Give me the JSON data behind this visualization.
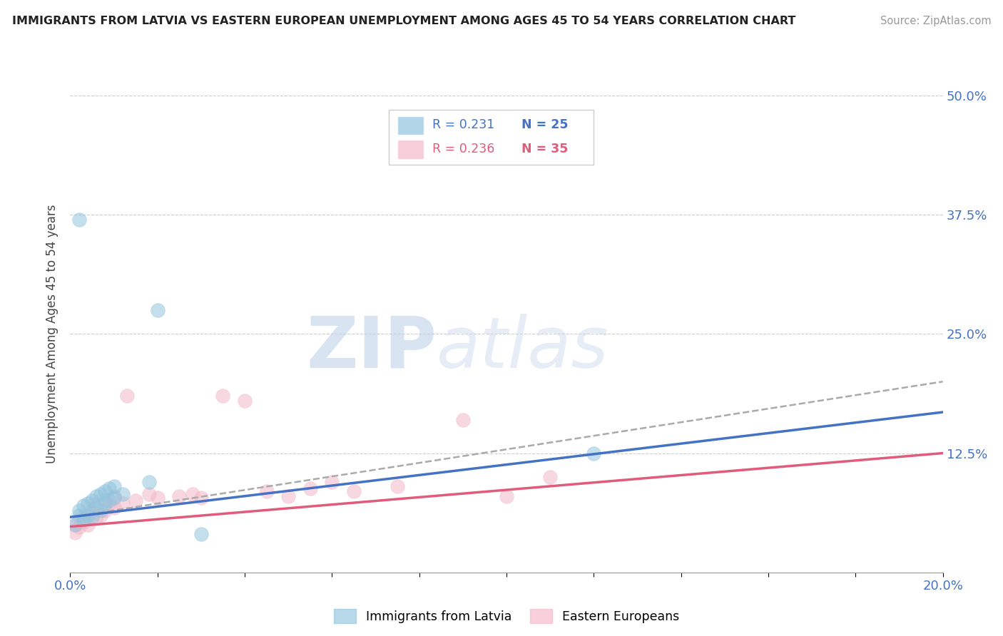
{
  "title": "IMMIGRANTS FROM LATVIA VS EASTERN EUROPEAN UNEMPLOYMENT AMONG AGES 45 TO 54 YEARS CORRELATION CHART",
  "source": "Source: ZipAtlas.com",
  "ylabel": "Unemployment Among Ages 45 to 54 years",
  "xlim": [
    0,
    0.2
  ],
  "ylim": [
    0,
    0.5
  ],
  "yticks": [
    0,
    0.125,
    0.25,
    0.375,
    0.5
  ],
  "ytick_labels": [
    "",
    "12.5%",
    "25.0%",
    "37.5%",
    "50.0%"
  ],
  "legend_r1": "R = 0.231",
  "legend_n1": "N = 25",
  "legend_r2": "R = 0.236",
  "legend_n2": "N = 35",
  "color_blue": "#92c5de",
  "color_pink": "#f4b8c8",
  "color_blue_text": "#4472c4",
  "color_pink_text": "#e05c7a",
  "blue_scatter_x": [
    0.001,
    0.002,
    0.002,
    0.003,
    0.003,
    0.004,
    0.004,
    0.005,
    0.005,
    0.006,
    0.006,
    0.007,
    0.007,
    0.008,
    0.008,
    0.009,
    0.009,
    0.01,
    0.01,
    0.012,
    0.018,
    0.002,
    0.02,
    0.12,
    0.03
  ],
  "blue_scatter_y": [
    0.05,
    0.065,
    0.06,
    0.055,
    0.07,
    0.06,
    0.072,
    0.058,
    0.075,
    0.068,
    0.08,
    0.065,
    0.082,
    0.072,
    0.085,
    0.075,
    0.088,
    0.078,
    0.09,
    0.082,
    0.095,
    0.37,
    0.275,
    0.125,
    0.04
  ],
  "pink_scatter_x": [
    0.001,
    0.001,
    0.002,
    0.003,
    0.003,
    0.004,
    0.005,
    0.005,
    0.006,
    0.006,
    0.007,
    0.008,
    0.008,
    0.009,
    0.01,
    0.01,
    0.012,
    0.013,
    0.015,
    0.018,
    0.02,
    0.025,
    0.028,
    0.03,
    0.035,
    0.04,
    0.045,
    0.05,
    0.055,
    0.06,
    0.065,
    0.075,
    0.09,
    0.1,
    0.11
  ],
  "pink_scatter_y": [
    0.042,
    0.05,
    0.048,
    0.052,
    0.058,
    0.05,
    0.062,
    0.065,
    0.058,
    0.072,
    0.06,
    0.065,
    0.075,
    0.07,
    0.068,
    0.08,
    0.072,
    0.185,
    0.075,
    0.082,
    0.078,
    0.08,
    0.082,
    0.078,
    0.185,
    0.18,
    0.085,
    0.08,
    0.088,
    0.095,
    0.085,
    0.09,
    0.16,
    0.08,
    0.1
  ],
  "blue_trend_x": [
    0.0,
    0.2
  ],
  "blue_trend_y": [
    0.058,
    0.168
  ],
  "gray_trend_x": [
    0.0,
    0.2
  ],
  "gray_trend_y": [
    0.058,
    0.2
  ],
  "pink_trend_x": [
    0.0,
    0.2
  ],
  "pink_trend_y": [
    0.048,
    0.125
  ],
  "watermark_zip": "ZIP",
  "watermark_atlas": "atlas",
  "background_color": "#ffffff",
  "grid_color": "#cccccc"
}
